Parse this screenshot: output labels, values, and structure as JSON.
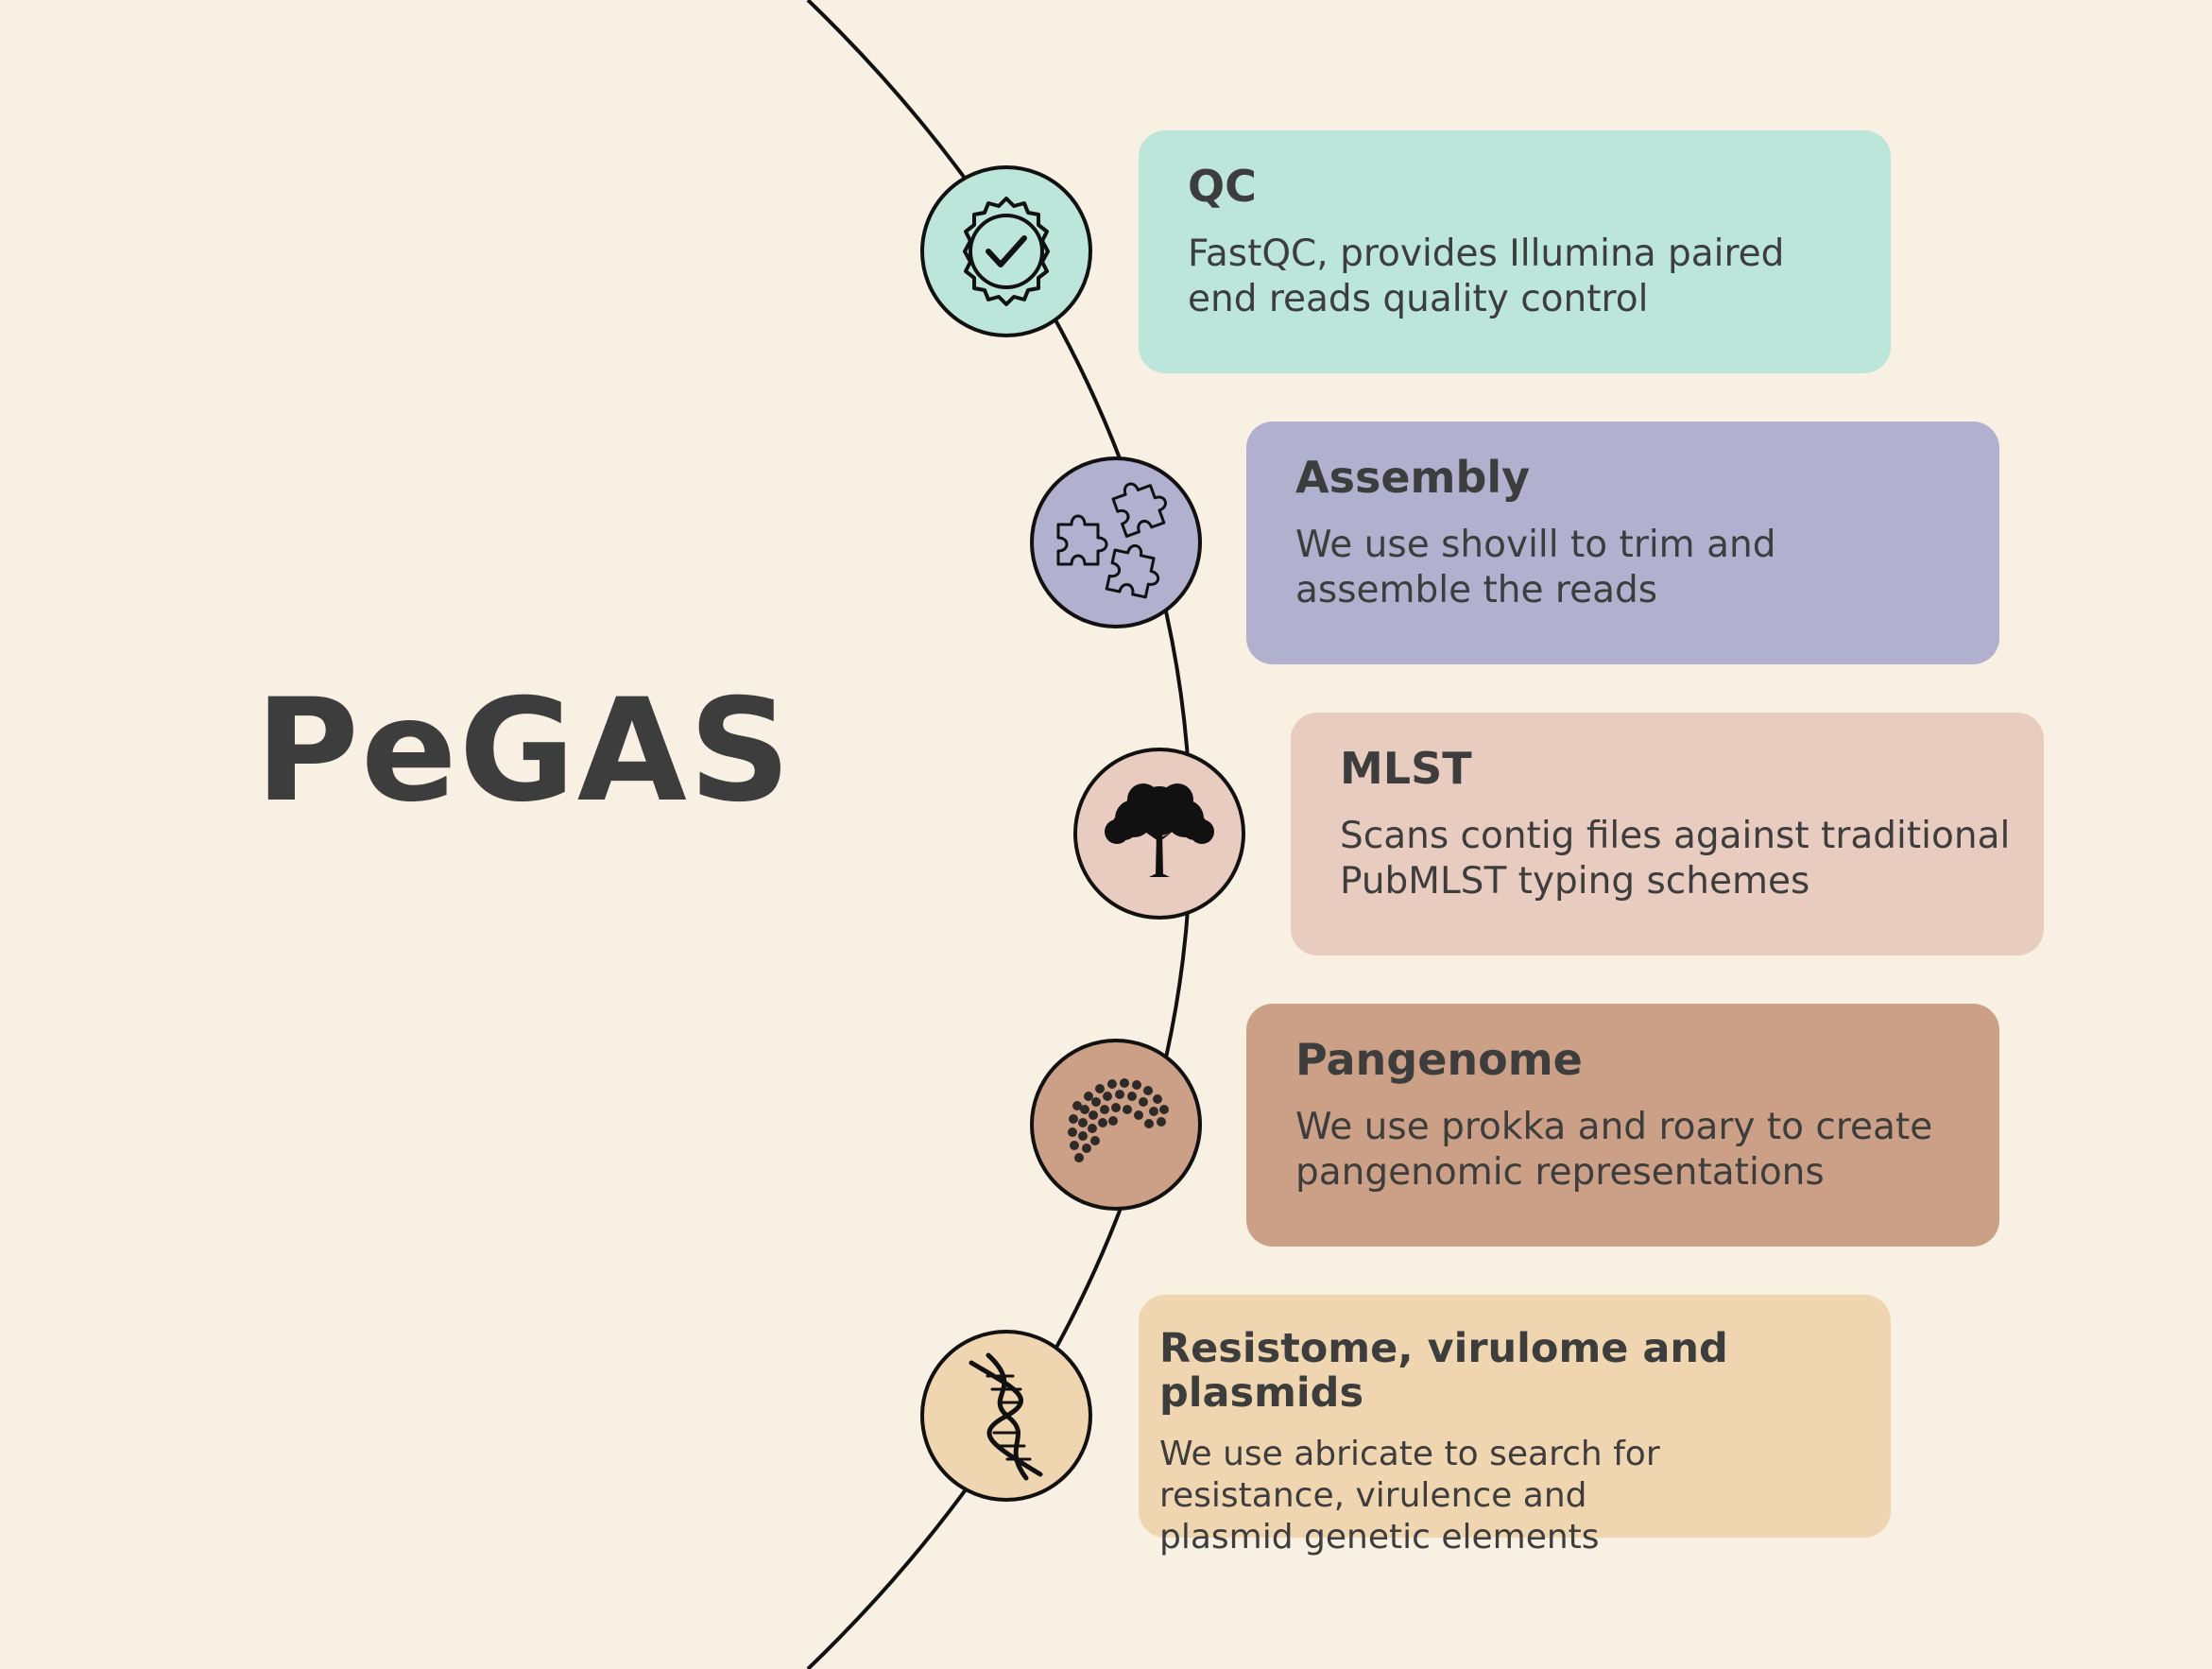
{
  "title": "PeGAS",
  "colors": {
    "background": "#F8F0E2",
    "text": "#3D3D3D",
    "line": "#111111"
  },
  "steps": [
    {
      "title": "QC",
      "description": "FastQC, provides Illumina paired end reads quality control",
      "color": "#BCE6DA",
      "icon": "check-badge-icon"
    },
    {
      "title": "Assembly",
      "description": "We use shovill to trim and assemble the reads",
      "color": "#B1B1CF",
      "icon": "puzzle-pieces-icon"
    },
    {
      "title": "MLST",
      "description": "Scans contig files against traditional PubMLST typing schemes",
      "color": "#E9CCC0",
      "icon": "tree-icon"
    },
    {
      "title": "Pangenome",
      "description": "We use prokka and roary to create pangenomic representations",
      "color": "#CCA086",
      "icon": "hexagon-sphere-icon"
    },
    {
      "title": "Resistome, virulome and plasmids",
      "description": "We use abricate to search for resistance, virulence and plasmid genetic elements",
      "color": "#F0D6B0",
      "icon": "dna-icon"
    }
  ]
}
